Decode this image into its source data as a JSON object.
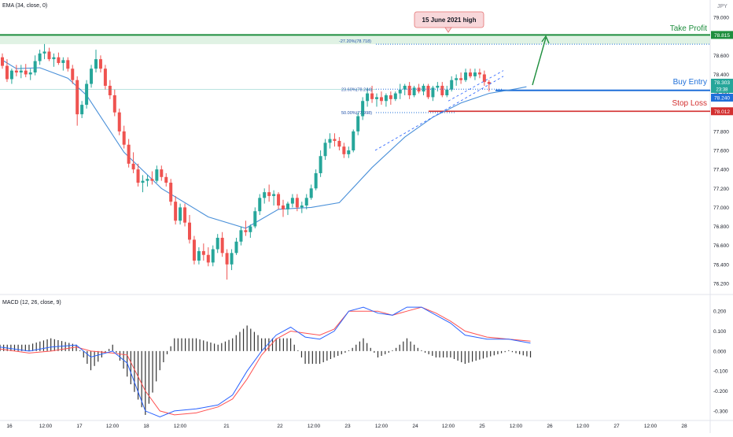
{
  "indicators": {
    "ema_label": "EMA (34, close, 0)",
    "macd_label": "MACD (12, 26, close, 9)"
  },
  "currency": "JPY",
  "annotations": {
    "callout": "15 June 2021 high",
    "take_profit": "Take Profit",
    "buy_entry": "Buy Entry",
    "stop_loss": "Stop Loss",
    "fib_2720": "-27.20%(78.718)",
    "fib_2360": "23.60%(78.244)",
    "fib_5000": "50.00%(77.998)"
  },
  "badges": {
    "take_profit": "78.815",
    "price": "78.303",
    "countdown": "23:38",
    "buy_entry": "78.240",
    "stop_loss": "78.012"
  },
  "colors": {
    "up": "#26a69a",
    "down": "#ef5350",
    "ema": "#4a90d9",
    "macd": "#2962ff",
    "signal": "#ff5252",
    "histogram": "#333333",
    "take_profit": "#1e8e3e",
    "buy_entry": "#1e6fd9",
    "stop_loss": "#d32f2f"
  },
  "chart_data": [
    {
      "type": "candlestick",
      "ylim": [
        76.1,
        79.1
      ],
      "y_ticks": [
        "79.000",
        "78.800",
        "78.600",
        "78.400",
        "78.200",
        "78.000",
        "77.800",
        "77.600",
        "77.400",
        "77.200",
        "77.000",
        "76.800",
        "76.600",
        "76.400",
        "76.200"
      ],
      "x_ticks": [
        "16",
        "12:00",
        "17",
        "12:00",
        "18",
        "12:00",
        "21",
        "22",
        "12:00",
        "23",
        "12:00",
        "24",
        "12:00",
        "25",
        "12:00",
        "26",
        "12:00",
        "27",
        "12:00",
        "28"
      ],
      "levels": {
        "take_profit": 78.815,
        "buy_entry": 78.24,
        "stop_loss": 78.012,
        "fib_m2720": 78.718,
        "fib_2360": 78.244,
        "fib_5000": 77.998
      },
      "ema_anchors": [
        [
          0,
          78.55
        ],
        [
          3,
          78.46
        ],
        [
          8,
          78.47
        ],
        [
          14,
          78.36
        ],
        [
          18,
          78.18
        ],
        [
          26,
          77.58
        ],
        [
          34,
          77.2
        ],
        [
          44,
          76.9
        ],
        [
          52,
          76.78
        ],
        [
          59,
          76.98
        ],
        [
          66,
          77.0
        ],
        [
          72,
          77.05
        ],
        [
          79,
          77.42
        ],
        [
          86,
          77.74
        ],
        [
          92,
          77.95
        ],
        [
          98,
          78.1
        ],
        [
          104,
          78.2
        ],
        [
          110,
          78.25
        ],
        [
          112,
          78.27
        ]
      ],
      "candles": [
        [
          78.58,
          78.62,
          78.46,
          78.49
        ],
        [
          78.49,
          78.56,
          78.32,
          78.35
        ],
        [
          78.35,
          78.46,
          78.3,
          78.44
        ],
        [
          78.44,
          78.5,
          78.38,
          78.42
        ],
        [
          78.42,
          78.5,
          78.36,
          78.44
        ],
        [
          78.44,
          78.51,
          78.37,
          78.4
        ],
        [
          78.4,
          78.46,
          78.34,
          78.42
        ],
        [
          78.42,
          78.6,
          78.39,
          78.54
        ],
        [
          78.54,
          78.66,
          78.5,
          78.62
        ],
        [
          78.62,
          78.72,
          78.56,
          78.64
        ],
        [
          78.64,
          78.68,
          78.54,
          78.56
        ],
        [
          78.56,
          78.62,
          78.48,
          78.58
        ],
        [
          78.58,
          78.63,
          78.5,
          78.52
        ],
        [
          78.52,
          78.58,
          78.44,
          78.55
        ],
        [
          78.55,
          78.58,
          78.43,
          78.46
        ],
        [
          78.46,
          78.5,
          78.3,
          78.34
        ],
        [
          78.34,
          78.38,
          77.86,
          77.98
        ],
        [
          77.98,
          78.12,
          77.94,
          78.08
        ],
        [
          78.08,
          78.34,
          78.04,
          78.3
        ],
        [
          78.3,
          78.5,
          78.26,
          78.46
        ],
        [
          78.46,
          78.66,
          78.42,
          78.56
        ],
        [
          78.56,
          78.6,
          78.42,
          78.46
        ],
        [
          78.46,
          78.5,
          78.24,
          78.28
        ],
        [
          78.28,
          78.34,
          78.14,
          78.18
        ],
        [
          78.18,
          78.24,
          77.96,
          78.0
        ],
        [
          78.0,
          78.04,
          77.76,
          77.8
        ],
        [
          77.8,
          77.86,
          77.62,
          77.66
        ],
        [
          77.66,
          77.72,
          77.42,
          77.46
        ],
        [
          77.46,
          77.58,
          77.36,
          77.4
        ],
        [
          77.4,
          77.46,
          77.22,
          77.26
        ],
        [
          77.26,
          77.34,
          77.16,
          77.28
        ],
        [
          77.28,
          77.34,
          77.22,
          77.3
        ],
        [
          77.3,
          77.38,
          77.24,
          77.28
        ],
        [
          77.28,
          77.44,
          77.26,
          77.4
        ],
        [
          77.4,
          77.44,
          77.28,
          77.32
        ],
        [
          77.32,
          77.36,
          77.22,
          77.26
        ],
        [
          77.26,
          77.3,
          77.02,
          77.06
        ],
        [
          77.06,
          77.12,
          76.82,
          76.86
        ],
        [
          76.86,
          77.04,
          76.82,
          77.0
        ],
        [
          77.0,
          77.04,
          76.8,
          76.84
        ],
        [
          76.84,
          76.92,
          76.62,
          76.66
        ],
        [
          76.66,
          76.7,
          76.4,
          76.44
        ],
        [
          76.44,
          76.58,
          76.4,
          76.54
        ],
        [
          76.54,
          76.62,
          76.44,
          76.5
        ],
        [
          76.5,
          76.58,
          76.38,
          76.42
        ],
        [
          76.42,
          76.6,
          76.38,
          76.56
        ],
        [
          76.56,
          76.72,
          76.52,
          76.68
        ],
        [
          76.68,
          76.74,
          76.48,
          76.52
        ],
        [
          76.52,
          76.56,
          76.24,
          76.4
        ],
        [
          76.4,
          76.56,
          76.34,
          76.52
        ],
        [
          76.52,
          76.68,
          76.5,
          76.64
        ],
        [
          76.64,
          76.8,
          76.6,
          76.76
        ],
        [
          76.76,
          76.86,
          76.7,
          76.74
        ],
        [
          76.74,
          76.82,
          76.68,
          76.8
        ],
        [
          76.8,
          77.0,
          76.78,
          76.96
        ],
        [
          76.96,
          77.14,
          76.92,
          77.1
        ],
        [
          77.1,
          77.2,
          77.04,
          77.16
        ],
        [
          77.16,
          77.24,
          77.06,
          77.12
        ],
        [
          77.12,
          77.18,
          77.02,
          77.14
        ],
        [
          77.14,
          77.16,
          76.98,
          77.02
        ],
        [
          77.02,
          77.08,
          76.9,
          76.98
        ],
        [
          76.98,
          77.06,
          76.92,
          77.04
        ],
        [
          77.04,
          77.14,
          77.0,
          77.1
        ],
        [
          77.1,
          77.14,
          76.96,
          77.0
        ],
        [
          77.0,
          77.06,
          76.94,
          77.02
        ],
        [
          77.02,
          77.14,
          76.98,
          77.1
        ],
        [
          77.1,
          77.24,
          77.08,
          77.2
        ],
        [
          77.2,
          77.4,
          77.18,
          77.36
        ],
        [
          77.36,
          77.6,
          77.32,
          77.54
        ],
        [
          77.54,
          77.72,
          77.5,
          77.68
        ],
        [
          77.68,
          77.78,
          77.62,
          77.72
        ],
        [
          77.72,
          77.78,
          77.64,
          77.7
        ],
        [
          77.7,
          77.74,
          77.6,
          77.64
        ],
        [
          77.64,
          77.68,
          77.52,
          77.56
        ],
        [
          77.56,
          77.64,
          77.52,
          77.6
        ],
        [
          77.6,
          77.82,
          77.58,
          77.8
        ],
        [
          77.8,
          78.0,
          77.76,
          77.96
        ],
        [
          77.96,
          78.16,
          77.92,
          78.12
        ],
        [
          78.12,
          78.26,
          78.06,
          78.2
        ],
        [
          78.2,
          78.28,
          78.1,
          78.14
        ],
        [
          78.14,
          78.2,
          78.06,
          78.16
        ],
        [
          78.16,
          78.22,
          78.08,
          78.12
        ],
        [
          78.12,
          78.2,
          78.06,
          78.18
        ],
        [
          78.18,
          78.22,
          78.08,
          78.14
        ],
        [
          78.14,
          78.22,
          78.12,
          78.2
        ],
        [
          78.2,
          78.3,
          78.14,
          78.24
        ],
        [
          78.24,
          78.3,
          78.18,
          78.28
        ],
        [
          78.28,
          78.32,
          78.14,
          78.18
        ],
        [
          78.18,
          78.28,
          78.16,
          78.26
        ],
        [
          78.26,
          78.3,
          78.2,
          78.22
        ],
        [
          78.22,
          78.3,
          78.18,
          78.28
        ],
        [
          78.28,
          78.3,
          78.14,
          78.16
        ],
        [
          78.16,
          78.28,
          78.12,
          78.26
        ],
        [
          78.26,
          78.32,
          78.22,
          78.28
        ],
        [
          78.28,
          78.32,
          78.16,
          78.18
        ],
        [
          78.18,
          78.28,
          78.16,
          78.24
        ],
        [
          78.24,
          78.38,
          78.22,
          78.34
        ],
        [
          78.34,
          78.4,
          78.28,
          78.36
        ],
        [
          78.36,
          78.42,
          78.3,
          78.34
        ],
        [
          78.34,
          78.46,
          78.32,
          78.42
        ],
        [
          78.42,
          78.46,
          78.36,
          78.38
        ],
        [
          78.38,
          78.46,
          78.34,
          78.42
        ],
        [
          78.42,
          78.46,
          78.36,
          78.4
        ],
        [
          78.4,
          78.44,
          78.28,
          78.32
        ],
        [
          78.32,
          78.34,
          78.22,
          78.3
        ]
      ]
    },
    {
      "type": "macd",
      "ylim": [
        -0.34,
        0.26
      ],
      "y_ticks": [
        "0.200",
        "0.100",
        "0.000",
        "-0.100",
        "-0.200",
        "-0.300"
      ],
      "macd_anchors": [
        [
          0,
          0.02
        ],
        [
          8,
          0.0
        ],
        [
          14,
          0.02
        ],
        [
          21,
          0.03
        ],
        [
          25,
          -0.03
        ],
        [
          31,
          0.0
        ],
        [
          35,
          -0.06
        ],
        [
          40,
          -0.3
        ],
        [
          44,
          -0.33
        ],
        [
          48,
          -0.3
        ],
        [
          54,
          -0.29
        ],
        [
          60,
          -0.27
        ],
        [
          64,
          -0.22
        ],
        [
          68,
          -0.1
        ],
        [
          72,
          0.0
        ],
        [
          76,
          0.08
        ],
        [
          80,
          0.12
        ],
        [
          84,
          0.07
        ],
        [
          88,
          0.06
        ],
        [
          92,
          0.1
        ],
        [
          96,
          0.2
        ],
        [
          100,
          0.22
        ],
        [
          104,
          0.19
        ],
        [
          108,
          0.18
        ],
        [
          112,
          0.22
        ],
        [
          116,
          0.22
        ],
        [
          120,
          0.18
        ],
        [
          124,
          0.14
        ],
        [
          128,
          0.08
        ],
        [
          134,
          0.06
        ],
        [
          140,
          0.06
        ],
        [
          146,
          0.04
        ]
      ],
      "signal_anchors": [
        [
          0,
          0.01
        ],
        [
          8,
          -0.01
        ],
        [
          14,
          0.0
        ],
        [
          21,
          0.02
        ],
        [
          25,
          0.0
        ],
        [
          31,
          -0.01
        ],
        [
          35,
          -0.02
        ],
        [
          40,
          -0.2
        ],
        [
          44,
          -0.3
        ],
        [
          48,
          -0.32
        ],
        [
          54,
          -0.31
        ],
        [
          60,
          -0.28
        ],
        [
          64,
          -0.24
        ],
        [
          68,
          -0.14
        ],
        [
          72,
          -0.02
        ],
        [
          76,
          0.06
        ],
        [
          80,
          0.1
        ],
        [
          84,
          0.09
        ],
        [
          88,
          0.08
        ],
        [
          92,
          0.11
        ],
        [
          96,
          0.2
        ],
        [
          100,
          0.2
        ],
        [
          104,
          0.2
        ],
        [
          108,
          0.18
        ],
        [
          112,
          0.2
        ],
        [
          116,
          0.22
        ],
        [
          120,
          0.19
        ],
        [
          124,
          0.15
        ],
        [
          128,
          0.1
        ],
        [
          134,
          0.07
        ],
        [
          140,
          0.06
        ],
        [
          146,
          0.05
        ]
      ]
    }
  ]
}
